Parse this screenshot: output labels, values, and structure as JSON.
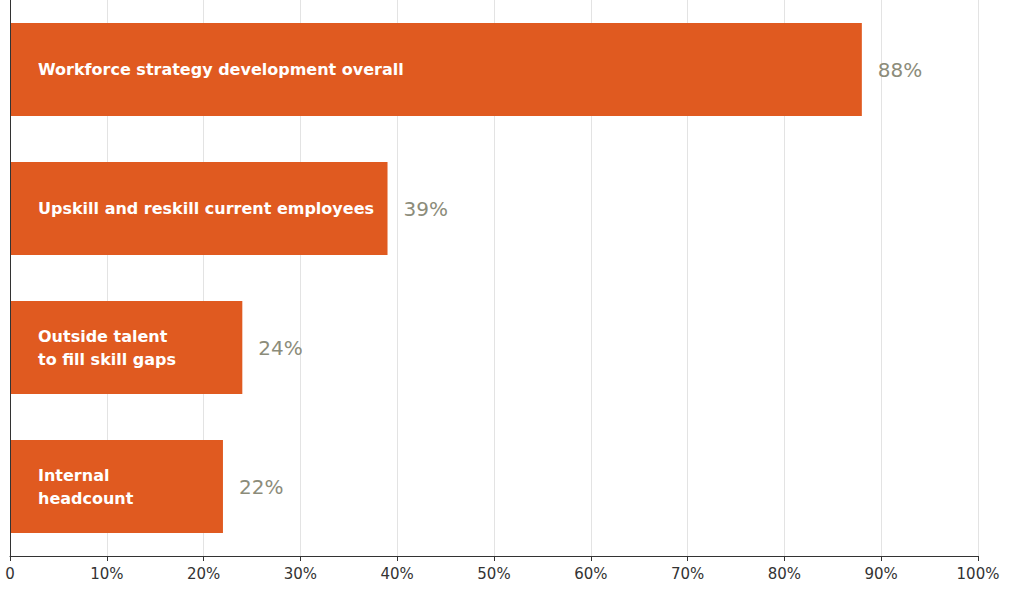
{
  "chart_data": {
    "type": "bar",
    "orientation": "horizontal",
    "categories": [
      "Workforce strategy development overall",
      "Upskill and reskill current employees",
      "Outside talent\nto fill skill gaps",
      "Internal\nheadcount"
    ],
    "values": [
      88,
      39,
      24,
      22
    ],
    "value_labels": [
      "88%",
      "39%",
      "24%",
      "22%"
    ],
    "data_labels": true,
    "color": "#e05a20",
    "xlim": [
      0,
      100
    ],
    "xticks": [
      0,
      {
        "value": 10,
        "label": "10%"
      },
      {
        "value": 20,
        "label": "20%"
      },
      {
        "value": 30,
        "label": "30%"
      },
      {
        "value": 40,
        "label": "40%"
      },
      {
        "value": 50,
        "label": "50%"
      },
      {
        "value": 60,
        "label": "60%"
      },
      {
        "value": 70,
        "label": "70%"
      },
      {
        "value": 80,
        "label": "80%"
      },
      {
        "value": 90,
        "label": "90%"
      },
      {
        "value": 100,
        "label": "100%"
      }
    ],
    "grid": true
  }
}
